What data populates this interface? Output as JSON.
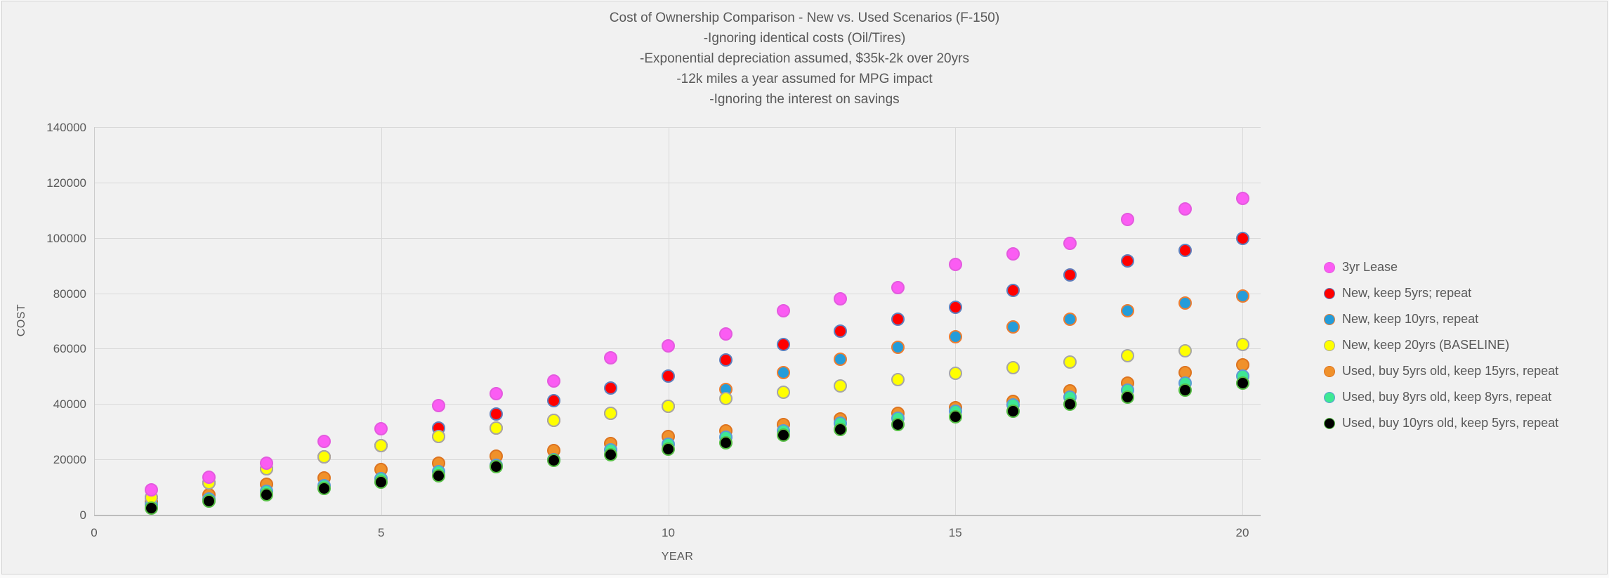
{
  "title_lines": [
    "Cost of Ownership Comparison - New vs. Used Scenarios (F-150)",
    "-Ignoring identical costs (Oil/Tires)",
    "-Exponential depreciation assumed, $35k-2k over 20yrs",
    "-12k miles a year assumed for MPG impact",
    "-Ignoring the interest on savings"
  ],
  "colors": {
    "chart_background": "#f1f1f1",
    "gridline": "#d9d9d9",
    "axis_line": "#bdbdbd",
    "text": "#595959",
    "frame_border": "#d2d2d2"
  },
  "chart_data": {
    "type": "scatter",
    "title": "Cost of Ownership Comparison - New vs. Used Scenarios (F-150)",
    "xlabel": "YEAR",
    "ylabel": "COST",
    "xlim": [
      0,
      20.3
    ],
    "ylim": [
      0,
      140000
    ],
    "x_ticks": [
      0,
      5,
      10,
      15,
      20
    ],
    "y_ticks": [
      0,
      20000,
      40000,
      60000,
      80000,
      100000,
      120000,
      140000
    ],
    "grid": true,
    "legend_position": "right",
    "years": [
      1,
      2,
      3,
      4,
      5,
      6,
      7,
      8,
      9,
      10,
      11,
      12,
      13,
      14,
      15,
      16,
      17,
      18,
      19,
      20
    ],
    "series": [
      {
        "name": "3yr Lease",
        "marker_fill": "#fb5cf3",
        "marker_border": "#e35bde",
        "z": 6,
        "values": [
          9000,
          13600,
          18600,
          26400,
          31000,
          39500,
          43800,
          48300,
          56600,
          61100,
          65400,
          73700,
          78000,
          82000,
          90300,
          94100,
          98100,
          106700,
          110500,
          114200
        ]
      },
      {
        "name": "New, keep 5yrs; repeat",
        "marker_fill": "#ff0000",
        "marker_border": "#5e7fbe",
        "z": 1,
        "values": [
          6300,
          11600,
          16600,
          20900,
          24900,
          31200,
          36500,
          41300,
          45800,
          50100,
          55900,
          61600,
          66200,
          70700,
          75000,
          81000,
          86500,
          91600,
          95600,
          99900
        ]
      },
      {
        "name": "New, keep 10yrs, repeat",
        "marker_fill": "#249cd9",
        "marker_border": "#ed7d31",
        "z": 2,
        "values": [
          6300,
          11600,
          16600,
          20900,
          24900,
          28200,
          31200,
          34200,
          36700,
          39200,
          45300,
          51300,
          56100,
          60400,
          64400,
          67900,
          70700,
          73700,
          76500,
          79000
        ]
      },
      {
        "name": "New, keep 20yrs (BASELINE)",
        "marker_fill": "#ffff00",
        "marker_border": "#a6a6a6",
        "z": 5,
        "values": [
          6300,
          11600,
          16600,
          20900,
          24900,
          28200,
          31200,
          34200,
          36700,
          39200,
          42000,
          44300,
          46500,
          48800,
          51100,
          53100,
          55100,
          57400,
          59100,
          61400
        ]
      },
      {
        "name": "Used, buy 5yrs old, keep 15yrs, repeat",
        "marker_fill": "#f0912b",
        "marker_border": "#dd7420",
        "z": 3,
        "values": [
          4800,
          7300,
          11000,
          13300,
          16400,
          18600,
          21100,
          23100,
          25700,
          28200,
          30400,
          32500,
          34500,
          36700,
          38800,
          41000,
          44800,
          47600,
          51300,
          54100
        ]
      },
      {
        "name": "Used, buy 8yrs old, keep 8yrs, repeat",
        "marker_fill": "#3ee894",
        "marker_border": "#5c9bd5",
        "z": 4,
        "values": [
          3800,
          5800,
          8500,
          10600,
          13100,
          15600,
          17800,
          20000,
          23400,
          25400,
          27900,
          30200,
          33000,
          35000,
          37500,
          39800,
          42500,
          45000,
          47600,
          50100
        ]
      },
      {
        "name": "Used, buy 10yrs old, keep 5yrs, repeat",
        "marker_fill": "#000000",
        "marker_border": "#56be45",
        "z": 7,
        "values": [
          2300,
          5000,
          7300,
          9500,
          11800,
          14100,
          17400,
          19600,
          21600,
          23600,
          25900,
          28700,
          30700,
          32700,
          35300,
          37500,
          40000,
          42500,
          45000,
          47600
        ]
      }
    ]
  }
}
